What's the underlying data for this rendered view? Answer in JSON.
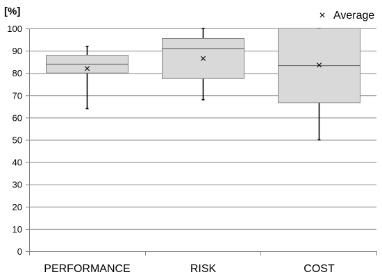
{
  "chart_data": {
    "type": "box",
    "y_unit_label": "[%]",
    "ylim": [
      0,
      100
    ],
    "y_ticks": [
      0,
      10,
      20,
      30,
      40,
      50,
      60,
      70,
      80,
      90,
      100
    ],
    "grid": true,
    "legend_position": "top-right",
    "legend": {
      "marker": "×",
      "label": "Average"
    },
    "categories": [
      "PERFORMANCE",
      "RISK",
      "COST"
    ],
    "boxes": [
      {
        "category": "PERFORMANCE",
        "min": 64,
        "q1": 80,
        "median": 84,
        "q3": 88,
        "max": 92,
        "mean": 82
      },
      {
        "category": "RISK",
        "min": 68,
        "q1": 77.5,
        "median": 91,
        "q3": 95.5,
        "max": 100,
        "mean": 86.5
      },
      {
        "category": "COST",
        "min": 50,
        "q1": 66.7,
        "median": 83.3,
        "q3": 100,
        "max": 100,
        "mean": 83.5
      }
    ],
    "colors": {
      "box_fill": "#d9d9d9",
      "box_stroke": "#808080",
      "grid": "#888888",
      "axis": "#808080",
      "whisker": "#000000"
    }
  }
}
